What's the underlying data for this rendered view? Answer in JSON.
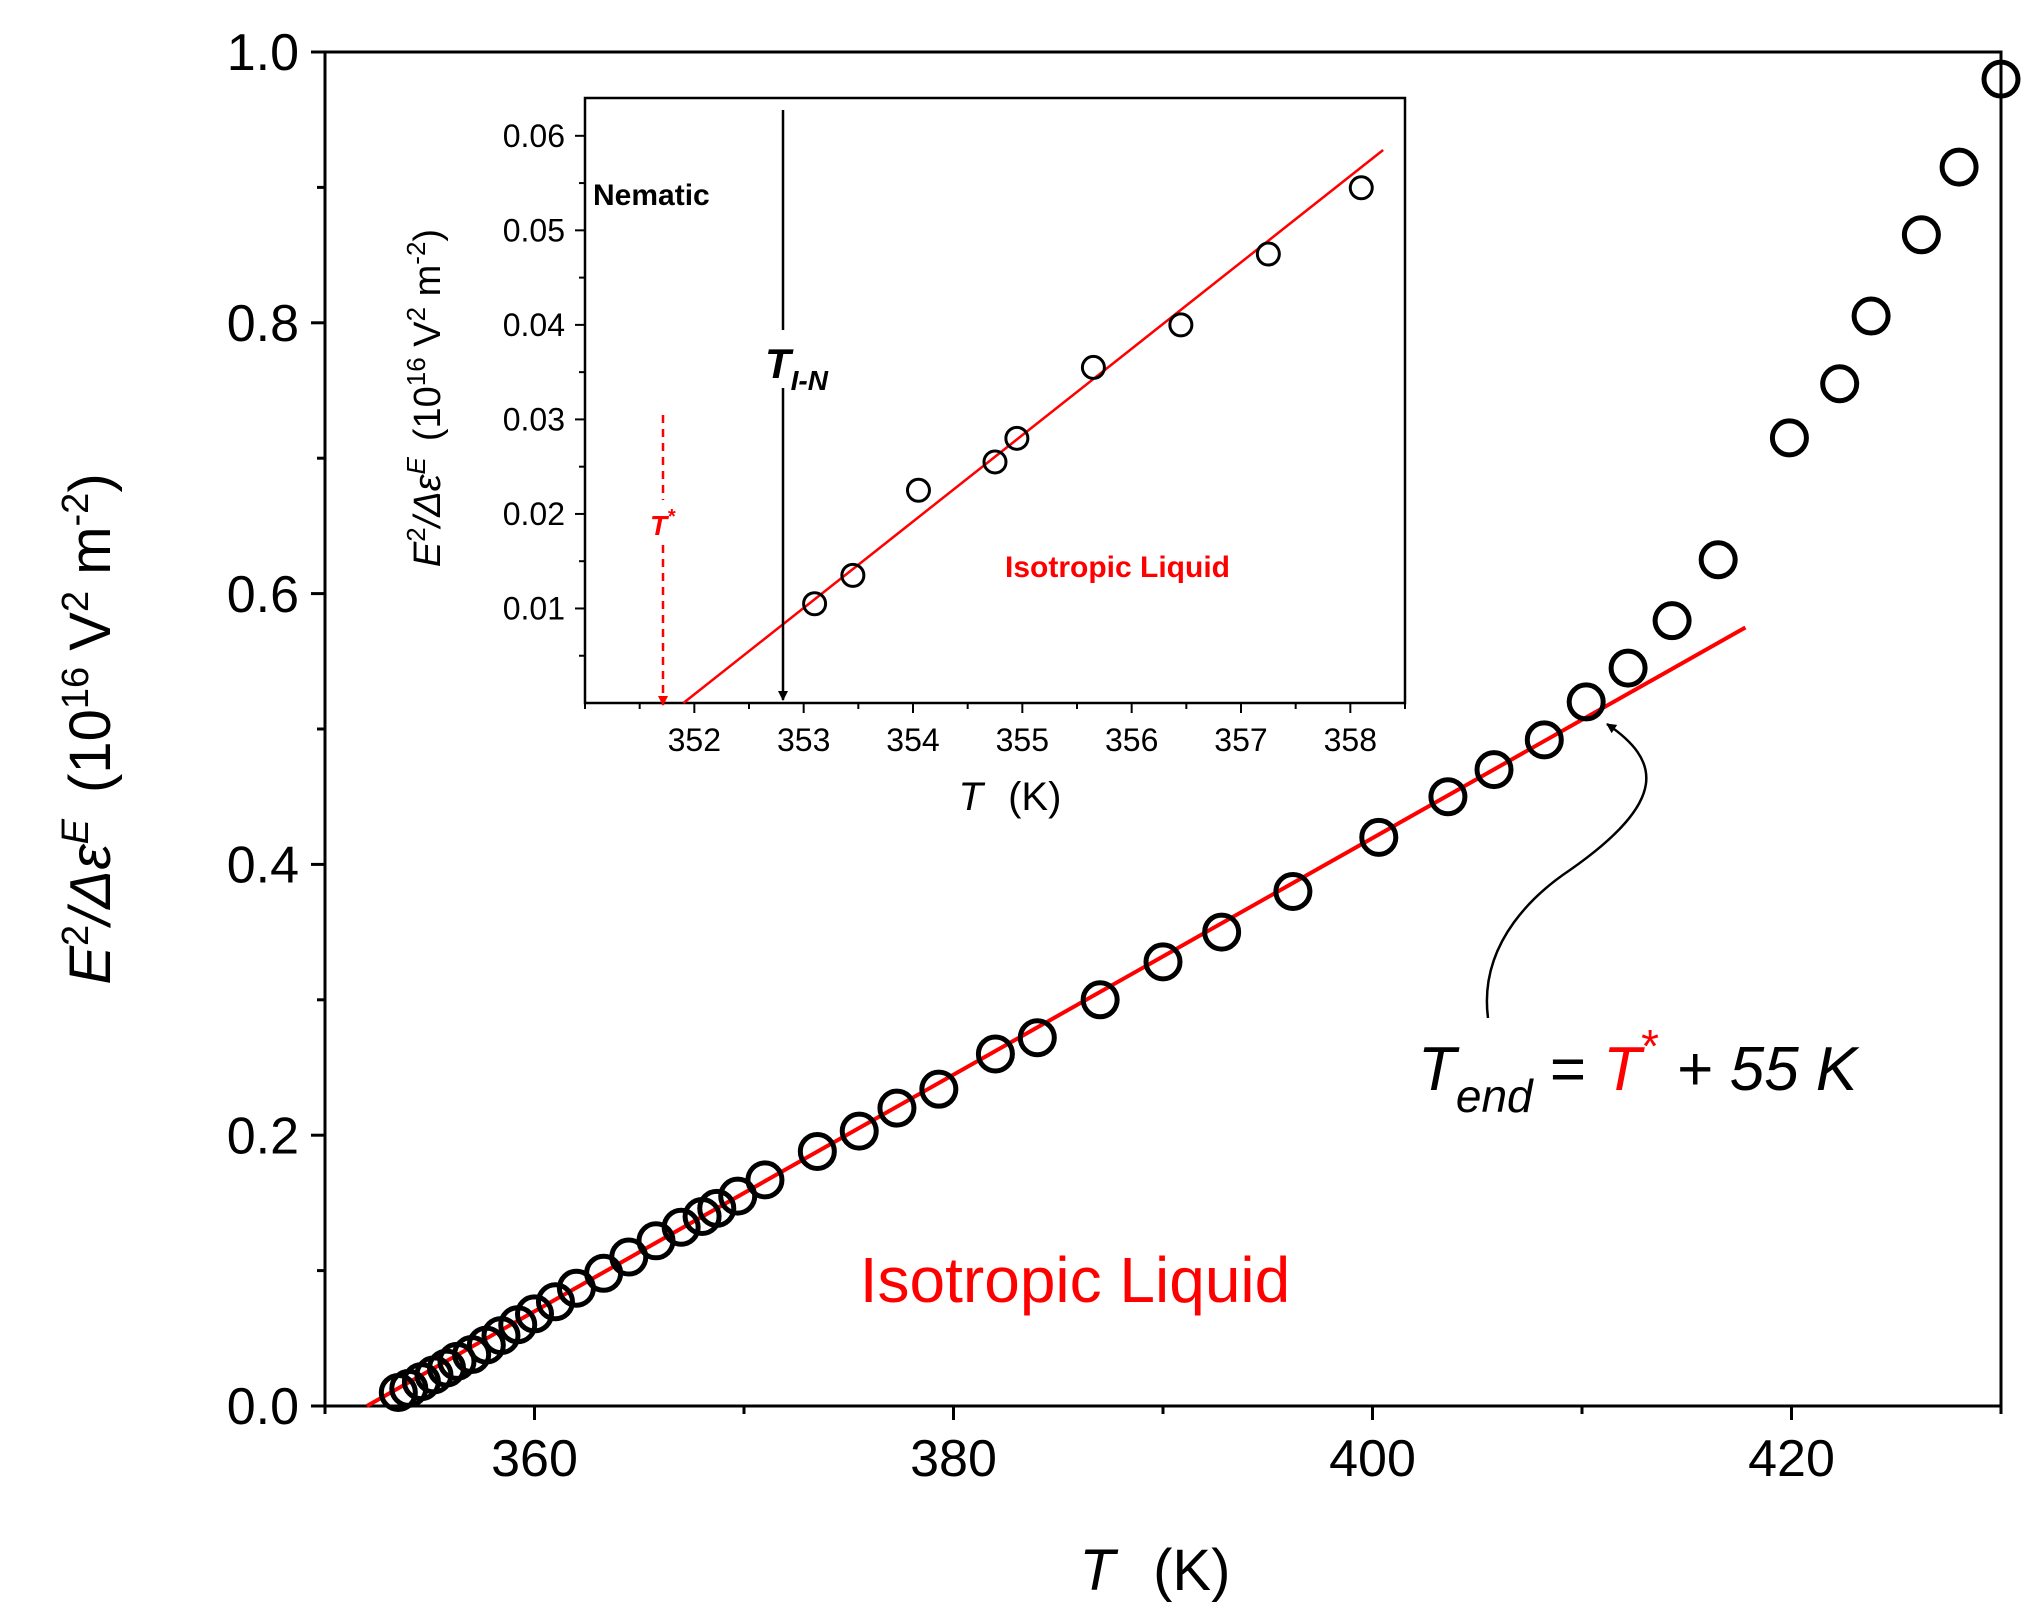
{
  "chart_data": [
    {
      "id": "main",
      "type": "scatter",
      "title": "",
      "xlabel": {
        "var": "T",
        "unit": "(K)"
      },
      "ylabel": {
        "base": "E",
        "sup": "2",
        "mid": "/Δε",
        "sup2": "E",
        "unit_pre": "(10",
        "unit_exp": "16",
        "unit_mid": " V",
        "unit_exp2": "2",
        "unit_mid2": " m",
        "unit_exp3": "-2",
        "unit_post": ")"
      },
      "xlim": [
        350,
        430
      ],
      "ylim": [
        0,
        1.0
      ],
      "xticks": [
        360,
        380,
        400,
        420
      ],
      "xtick_labels": [
        "360",
        "380",
        "400",
        "420"
      ],
      "yticks": [
        0.0,
        0.2,
        0.4,
        0.6,
        0.8,
        1.0
      ],
      "ytick_labels": [
        "0.0",
        "0.2",
        "0.4",
        "0.6",
        "0.8",
        "1.0"
      ],
      "series": [
        {
          "name": "data",
          "marker": "open-circle",
          "color": "#000000",
          "x": [
            353.5,
            354.0,
            354.6,
            355.2,
            355.8,
            356.3,
            357.0,
            357.7,
            358.4,
            359.2,
            360.0,
            361.0,
            362.0,
            363.3,
            364.5,
            365.8,
            367.0,
            368.0,
            368.7,
            369.7,
            371.0,
            373.5,
            375.5,
            377.3,
            379.3,
            382.0,
            384.0,
            387.0,
            390.0,
            392.8,
            396.2,
            400.3,
            403.6,
            405.8,
            408.2,
            410.2,
            412.2,
            414.3,
            416.5,
            419.9,
            422.3,
            423.8,
            426.2,
            428.0,
            430.0
          ],
          "y": [
            0.01,
            0.013,
            0.018,
            0.023,
            0.028,
            0.033,
            0.038,
            0.045,
            0.052,
            0.06,
            0.068,
            0.077,
            0.087,
            0.098,
            0.11,
            0.122,
            0.132,
            0.14,
            0.146,
            0.155,
            0.167,
            0.188,
            0.203,
            0.22,
            0.234,
            0.26,
            0.272,
            0.3,
            0.328,
            0.35,
            0.38,
            0.42,
            0.45,
            0.47,
            0.492,
            0.52,
            0.545,
            0.58,
            0.625,
            0.715,
            0.755,
            0.805,
            0.865,
            0.915,
            0.98
          ]
        }
      ],
      "fit_line": {
        "name": "linear fit",
        "color": "#ff0000",
        "x": [
          352.0,
          417.8
        ],
        "y": [
          0.0,
          0.575
        ]
      },
      "annotations": {
        "region_label": "Isotropic Liquid",
        "region_label_color": "#ff0000",
        "tend": {
          "t": "T",
          "sub": "end",
          "eq": " = ",
          "tstar": "T",
          "star": "*",
          "rest": " + 55 K",
          "tstar_color": "#ff0000"
        }
      }
    },
    {
      "id": "inset",
      "type": "scatter",
      "title": "",
      "xlabel": {
        "var": "T",
        "unit": "(K)"
      },
      "ylabel": {
        "base": "E",
        "sup": "2",
        "mid": "/Δε",
        "sup2": "E",
        "unit_pre": "(10",
        "unit_exp": "16",
        "unit_mid": " V",
        "unit_exp2": "2",
        "unit_mid2": " m",
        "unit_exp3": "-2",
        "unit_post": ")"
      },
      "xlim": [
        351.0,
        358.5
      ],
      "ylim": [
        0.0,
        0.064
      ],
      "xticks": [
        352,
        353,
        354,
        355,
        356,
        357,
        358
      ],
      "xtick_labels": [
        "352",
        "353",
        "354",
        "355",
        "356",
        "357",
        "358"
      ],
      "yticks": [
        0.01,
        0.02,
        0.03,
        0.04,
        0.05,
        0.06
      ],
      "ytick_labels": [
        "0.01",
        "0.02",
        "0.03",
        "0.04",
        "0.05",
        "0.06"
      ],
      "series": [
        {
          "name": "data",
          "marker": "open-circle",
          "color": "#000000",
          "x": [
            353.1,
            353.45,
            354.05,
            354.75,
            354.95,
            355.65,
            356.45,
            357.25,
            358.1
          ],
          "y": [
            0.0105,
            0.0135,
            0.0225,
            0.0255,
            0.028,
            0.0355,
            0.04,
            0.0475,
            0.0545
          ]
        }
      ],
      "fit_line": {
        "name": "linear fit",
        "color": "#ff0000",
        "x": [
          351.9,
          358.3
        ],
        "y": [
          0.0,
          0.0585
        ]
      },
      "annotations": {
        "nematic_label": "Nematic",
        "region_label": "Isotropic Liquid",
        "region_label_color": "#ff0000",
        "tin": {
          "t": "T",
          "sub": "I-N",
          "x": 353.0
        },
        "tstar": {
          "t": "T",
          "star": "*",
          "x": 351.9,
          "color": "#ff0000"
        }
      }
    }
  ]
}
